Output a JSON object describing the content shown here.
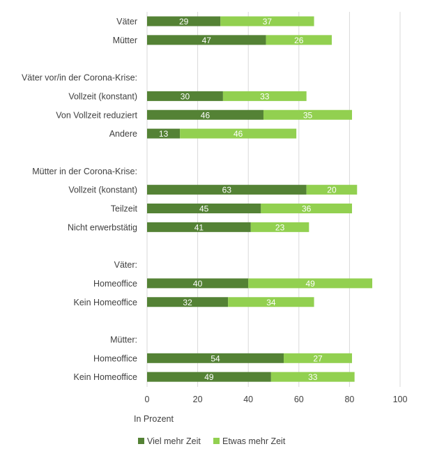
{
  "chart_data": {
    "type": "bar",
    "orientation": "horizontal",
    "stacked": true,
    "rows": [
      {
        "kind": "category",
        "label": "Väter",
        "values": [
          29,
          37
        ]
      },
      {
        "kind": "category",
        "label": "Mütter",
        "values": [
          47,
          26
        ]
      },
      {
        "kind": "spacer"
      },
      {
        "kind": "group",
        "label": "Väter vor/in der Corona-Krise:"
      },
      {
        "kind": "category",
        "label": "Vollzeit (konstant)",
        "values": [
          30,
          33
        ]
      },
      {
        "kind": "category",
        "label": "Von Vollzeit reduziert",
        "values": [
          46,
          35
        ]
      },
      {
        "kind": "category",
        "label": "Andere",
        "values": [
          13,
          46
        ]
      },
      {
        "kind": "spacer"
      },
      {
        "kind": "group",
        "label": "Mütter in der Corona-Krise:"
      },
      {
        "kind": "category",
        "label": "Vollzeit (konstant)",
        "values": [
          63,
          20
        ]
      },
      {
        "kind": "category",
        "label": "Teilzeit",
        "values": [
          45,
          36
        ]
      },
      {
        "kind": "category",
        "label": "Nicht erwerbstätig",
        "values": [
          41,
          23
        ]
      },
      {
        "kind": "spacer"
      },
      {
        "kind": "group",
        "label": "Väter:"
      },
      {
        "kind": "category",
        "label": "Homeoffice",
        "values": [
          40,
          49
        ]
      },
      {
        "kind": "category",
        "label": "Kein Homeoffice",
        "values": [
          32,
          34
        ]
      },
      {
        "kind": "spacer"
      },
      {
        "kind": "group",
        "label": "Mütter:"
      },
      {
        "kind": "category",
        "label": "Homeoffice",
        "values": [
          54,
          27
        ]
      },
      {
        "kind": "category",
        "label": "Kein Homeoffice",
        "values": [
          49,
          33
        ]
      }
    ],
    "series": [
      {
        "name": "Viel mehr Zeit",
        "color": "#548235"
      },
      {
        "name": "Etwas mehr Zeit",
        "color": "#92d050"
      }
    ],
    "xlabel": "In Prozent",
    "xlim": [
      0,
      100
    ],
    "xticks": [
      0,
      20,
      40,
      60,
      80,
      100
    ],
    "grid": true,
    "legend": "bottom"
  }
}
